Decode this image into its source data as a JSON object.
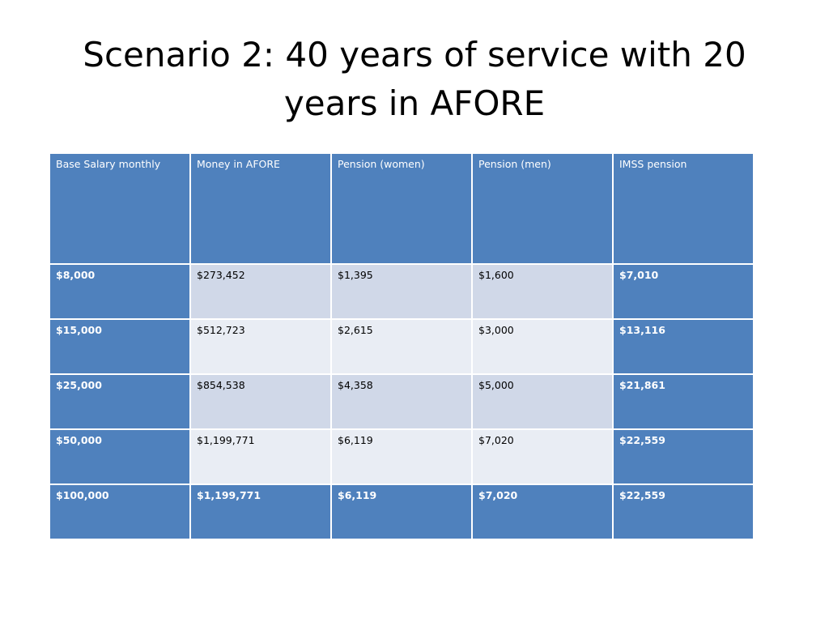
{
  "slide": {
    "title": "Scenario 2: 40 years of service with 20 years in AFORE"
  },
  "table": {
    "headers": [
      "Base Salary monthly",
      "Money in AFORE",
      "Pension (women)",
      "Pension (men)",
      "IMSS pension"
    ],
    "rows": [
      [
        "$8,000",
        "$273,452",
        "$1,395",
        "$1,600",
        "$7,010"
      ],
      [
        "$15,000",
        "$512,723",
        "$2,615",
        "$3,000",
        "$13,116"
      ],
      [
        "$25,000",
        "$854,538",
        "$4,358",
        "$5,000",
        "$21,861"
      ],
      [
        "$50,000",
        "$1,199,771",
        "$6,119",
        "$7,020",
        "$22,559"
      ],
      [
        "$100,000",
        "$1,199,771",
        "$6,119",
        "$7,020",
        "$22,559"
      ]
    ]
  },
  "colors": {
    "accent_blue": "#4f81bd",
    "band_dark": "#d0d8e8",
    "band_light": "#e9edf4"
  }
}
